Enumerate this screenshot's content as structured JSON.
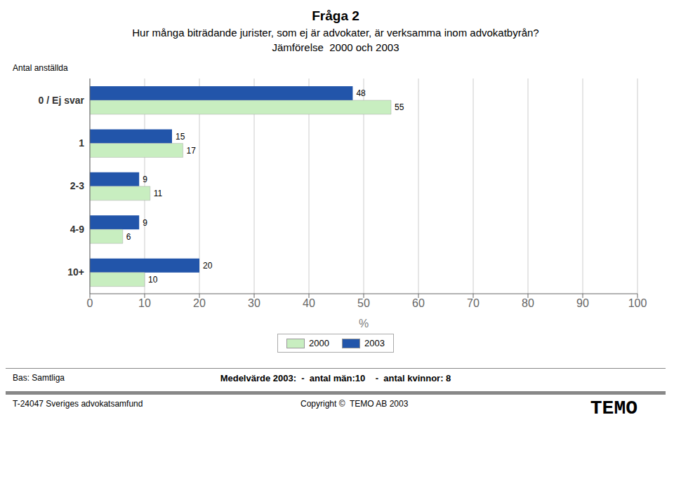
{
  "chart_data": {
    "type": "bar",
    "orientation": "horizontal",
    "title": "Fråga 2",
    "subtitle": [
      "Hur många biträdande jurister, som ej är advokater, är verksamma inom advokatbyrån?",
      "Jämförelse  2000 och 2003"
    ],
    "xlabel": "%",
    "ylabel": "Antal anställda",
    "categories": [
      "0 / Ej svar",
      "1",
      "2-3",
      "4-9",
      "10+"
    ],
    "series": [
      {
        "name": "2000",
        "color": "#C8EEC0",
        "values": [
          55,
          17,
          11,
          6,
          10
        ]
      },
      {
        "name": "2003",
        "color": "#2255AA",
        "values": [
          48,
          15,
          9,
          9,
          20
        ]
      }
    ],
    "xlim": [
      0,
      100
    ],
    "xticks": [
      0,
      10,
      20,
      30,
      40,
      50,
      60,
      70,
      80,
      90,
      100
    ],
    "grid": true,
    "legend": "bottom",
    "data_labels": true,
    "annotations": [
      "Bas: Samtliga",
      "Medelvärde 2003:  -  antal män:10    -  antal kvinnor: 8",
      "T-24047 Sveriges advokatsamfund",
      "Copyright ©  TEMO AB 2003",
      "TEMO"
    ]
  }
}
